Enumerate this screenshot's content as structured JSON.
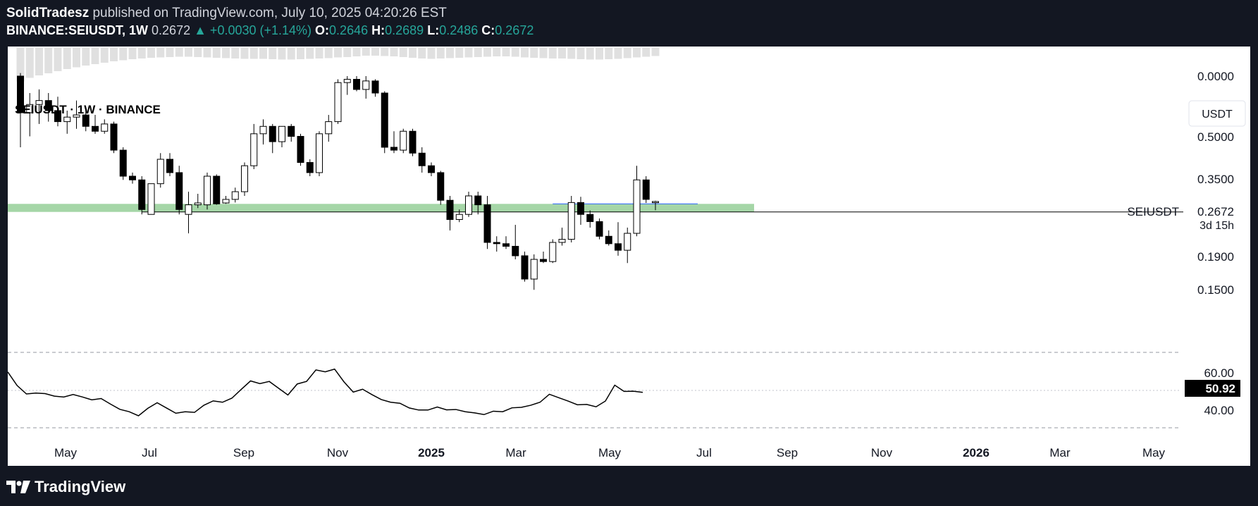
{
  "header": {
    "author": "SolidTradesz",
    "published": "published on TradingView.com, July 10, 2025 04:20:26 EST",
    "symbol": "BINANCE:SEIUSDT, 1W",
    "last": "0.2672",
    "change": "▲ +0.0030 (+1.14%)",
    "o_label": "O:",
    "o": "0.2646",
    "h_label": "H:",
    "h": "0.2689",
    "l_label": "L:",
    "l": "0.2486",
    "c_label": "C:",
    "c": "0.2672"
  },
  "footer": {
    "brand": "TradingView",
    "logo_icon": "tradingview-logo-icon"
  },
  "colors": {
    "up": "#26a69a",
    "zone": "#a5d6a7",
    "candle": "#000000"
  },
  "chart_data": {
    "type": "candlestick",
    "title": "SEIUSDT · 1W · BINANCE",
    "currency": "USDT",
    "scale": "log",
    "y_ticks": [
      "0.0000",
      "0.5000",
      "0.3500",
      "0.2672",
      "0.1900",
      "0.1500"
    ],
    "last_price_label": {
      "symbol": "SEIUSDT",
      "price": "0.2672",
      "countdown": "3d 15h"
    },
    "x_ticks": [
      "May",
      "Jul",
      "Sep",
      "Nov",
      "2025",
      "Mar",
      "May",
      "Jul",
      "Sep",
      "Nov",
      "2026",
      "Mar",
      "May"
    ],
    "support_zone": [
      0.245,
      0.262
    ],
    "horizontal_line": 0.245,
    "candles": [
      {
        "o": 0.76,
        "h": 0.78,
        "l": 0.42,
        "c": 0.56
      },
      {
        "o": 0.56,
        "h": 0.66,
        "l": 0.46,
        "c": 0.6
      },
      {
        "o": 0.6,
        "h": 0.68,
        "l": 0.51,
        "c": 0.62
      },
      {
        "o": 0.62,
        "h": 0.66,
        "l": 0.52,
        "c": 0.57
      },
      {
        "o": 0.57,
        "h": 0.64,
        "l": 0.5,
        "c": 0.52
      },
      {
        "o": 0.52,
        "h": 0.57,
        "l": 0.47,
        "c": 0.54
      },
      {
        "o": 0.54,
        "h": 0.62,
        "l": 0.49,
        "c": 0.55
      },
      {
        "o": 0.55,
        "h": 0.58,
        "l": 0.48,
        "c": 0.5
      },
      {
        "o": 0.5,
        "h": 0.55,
        "l": 0.47,
        "c": 0.48
      },
      {
        "o": 0.48,
        "h": 0.53,
        "l": 0.47,
        "c": 0.51
      },
      {
        "o": 0.51,
        "h": 0.52,
        "l": 0.4,
        "c": 0.41
      },
      {
        "o": 0.41,
        "h": 0.42,
        "l": 0.32,
        "c": 0.33
      },
      {
        "o": 0.33,
        "h": 0.34,
        "l": 0.31,
        "c": 0.32
      },
      {
        "o": 0.32,
        "h": 0.33,
        "l": 0.24,
        "c": 0.25
      },
      {
        "o": 0.24,
        "h": 0.31,
        "l": 0.24,
        "c": 0.31
      },
      {
        "o": 0.31,
        "h": 0.4,
        "l": 0.3,
        "c": 0.38
      },
      {
        "o": 0.38,
        "h": 0.4,
        "l": 0.33,
        "c": 0.34
      },
      {
        "o": 0.34,
        "h": 0.36,
        "l": 0.24,
        "c": 0.25
      },
      {
        "o": 0.24,
        "h": 0.29,
        "l": 0.205,
        "c": 0.26
      },
      {
        "o": 0.26,
        "h": 0.285,
        "l": 0.253,
        "c": 0.264
      },
      {
        "o": 0.26,
        "h": 0.34,
        "l": 0.25,
        "c": 0.33
      },
      {
        "o": 0.33,
        "h": 0.335,
        "l": 0.26,
        "c": 0.262
      },
      {
        "o": 0.264,
        "h": 0.28,
        "l": 0.262,
        "c": 0.272
      },
      {
        "o": 0.272,
        "h": 0.3,
        "l": 0.265,
        "c": 0.29
      },
      {
        "o": 0.29,
        "h": 0.37,
        "l": 0.28,
        "c": 0.36
      },
      {
        "o": 0.36,
        "h": 0.51,
        "l": 0.35,
        "c": 0.47
      },
      {
        "o": 0.47,
        "h": 0.53,
        "l": 0.43,
        "c": 0.5
      },
      {
        "o": 0.5,
        "h": 0.51,
        "l": 0.4,
        "c": 0.44
      },
      {
        "o": 0.44,
        "h": 0.5,
        "l": 0.42,
        "c": 0.5
      },
      {
        "o": 0.5,
        "h": 0.51,
        "l": 0.44,
        "c": 0.46
      },
      {
        "o": 0.46,
        "h": 0.47,
        "l": 0.36,
        "c": 0.37
      },
      {
        "o": 0.37,
        "h": 0.38,
        "l": 0.33,
        "c": 0.34
      },
      {
        "o": 0.34,
        "h": 0.48,
        "l": 0.33,
        "c": 0.47
      },
      {
        "o": 0.47,
        "h": 0.55,
        "l": 0.44,
        "c": 0.52
      },
      {
        "o": 0.52,
        "h": 0.74,
        "l": 0.51,
        "c": 0.72
      },
      {
        "o": 0.72,
        "h": 0.76,
        "l": 0.65,
        "c": 0.74
      },
      {
        "o": 0.74,
        "h": 0.76,
        "l": 0.67,
        "c": 0.68
      },
      {
        "o": 0.68,
        "h": 0.76,
        "l": 0.63,
        "c": 0.73
      },
      {
        "o": 0.73,
        "h": 0.74,
        "l": 0.64,
        "c": 0.66
      },
      {
        "o": 0.66,
        "h": 0.67,
        "l": 0.4,
        "c": 0.42
      },
      {
        "o": 0.42,
        "h": 0.48,
        "l": 0.4,
        "c": 0.41
      },
      {
        "o": 0.41,
        "h": 0.49,
        "l": 0.4,
        "c": 0.48
      },
      {
        "o": 0.48,
        "h": 0.49,
        "l": 0.39,
        "c": 0.4
      },
      {
        "o": 0.4,
        "h": 0.42,
        "l": 0.34,
        "c": 0.36
      },
      {
        "o": 0.36,
        "h": 0.37,
        "l": 0.33,
        "c": 0.34
      },
      {
        "o": 0.34,
        "h": 0.345,
        "l": 0.26,
        "c": 0.27
      },
      {
        "o": 0.27,
        "h": 0.28,
        "l": 0.21,
        "c": 0.23
      },
      {
        "o": 0.23,
        "h": 0.25,
        "l": 0.225,
        "c": 0.24
      },
      {
        "o": 0.24,
        "h": 0.29,
        "l": 0.235,
        "c": 0.28
      },
      {
        "o": 0.28,
        "h": 0.29,
        "l": 0.24,
        "c": 0.26
      },
      {
        "o": 0.26,
        "h": 0.28,
        "l": 0.18,
        "c": 0.19
      },
      {
        "o": 0.19,
        "h": 0.2,
        "l": 0.176,
        "c": 0.188
      },
      {
        "o": 0.188,
        "h": 0.2,
        "l": 0.18,
        "c": 0.184
      },
      {
        "o": 0.184,
        "h": 0.22,
        "l": 0.165,
        "c": 0.17
      },
      {
        "o": 0.17,
        "h": 0.176,
        "l": 0.137,
        "c": 0.14
      },
      {
        "o": 0.14,
        "h": 0.172,
        "l": 0.128,
        "c": 0.165
      },
      {
        "o": 0.165,
        "h": 0.176,
        "l": 0.16,
        "c": 0.162
      },
      {
        "o": 0.162,
        "h": 0.195,
        "l": 0.16,
        "c": 0.19
      },
      {
        "o": 0.19,
        "h": 0.215,
        "l": 0.185,
        "c": 0.195
      },
      {
        "o": 0.195,
        "h": 0.28,
        "l": 0.19,
        "c": 0.265
      },
      {
        "o": 0.265,
        "h": 0.278,
        "l": 0.22,
        "c": 0.24
      },
      {
        "o": 0.24,
        "h": 0.248,
        "l": 0.215,
        "c": 0.226
      },
      {
        "o": 0.226,
        "h": 0.232,
        "l": 0.195,
        "c": 0.2
      },
      {
        "o": 0.2,
        "h": 0.21,
        "l": 0.185,
        "c": 0.188
      },
      {
        "o": 0.188,
        "h": 0.225,
        "l": 0.17,
        "c": 0.178
      },
      {
        "o": 0.178,
        "h": 0.215,
        "l": 0.16,
        "c": 0.205
      },
      {
        "o": 0.205,
        "h": 0.36,
        "l": 0.2,
        "c": 0.32
      },
      {
        "o": 0.32,
        "h": 0.33,
        "l": 0.264,
        "c": 0.272
      },
      {
        "o": 0.2646,
        "h": 0.2689,
        "l": 0.2486,
        "c": 0.2672
      }
    ],
    "volume_profile": [
      95,
      85,
      78,
      72,
      66,
      60,
      55,
      50,
      46,
      42,
      38,
      35,
      32,
      30,
      28,
      27,
      26,
      25,
      25,
      26,
      27,
      28,
      29,
      30,
      31,
      31,
      31,
      32,
      33,
      33,
      32,
      31,
      30,
      29,
      27,
      26,
      24,
      22,
      22,
      23,
      24,
      26,
      28,
      30,
      31,
      30,
      29,
      28,
      27,
      26,
      25,
      24,
      24,
      25,
      27,
      28,
      29,
      30,
      30,
      31,
      32,
      33,
      33,
      32,
      31,
      29,
      27,
      25,
      23
    ],
    "rsi": {
      "levels": [
        "60.00",
        "40.00"
      ],
      "current": "50.92",
      "values": [
        63,
        55,
        50,
        50.5,
        50.2,
        48.7,
        48.2,
        49.7,
        48.2,
        46.5,
        47.3,
        44,
        40.9,
        39.5,
        37.1,
        41.5,
        44.8,
        41.7,
        38.6,
        39.5,
        39.1,
        43.3,
        45.9,
        45.1,
        47.5,
        52.7,
        57.7,
        56.1,
        57.4,
        53.4,
        49.4,
        55.9,
        57.4,
        64.2,
        63.1,
        64.7,
        57.2,
        51.1,
        52.8,
        49.6,
        46.7,
        45.1,
        44.5,
        41.7,
        40.5,
        40.5,
        42.3,
        40.6,
        40.8,
        39.5,
        38.8,
        37.8,
        39.8,
        39.5,
        41.8,
        42.1,
        43.3,
        45.1,
        49.8,
        47.8,
        45.8,
        43.6,
        43.8,
        42.4,
        45.8,
        55.2,
        51.5,
        51.6,
        50.92
      ]
    }
  }
}
